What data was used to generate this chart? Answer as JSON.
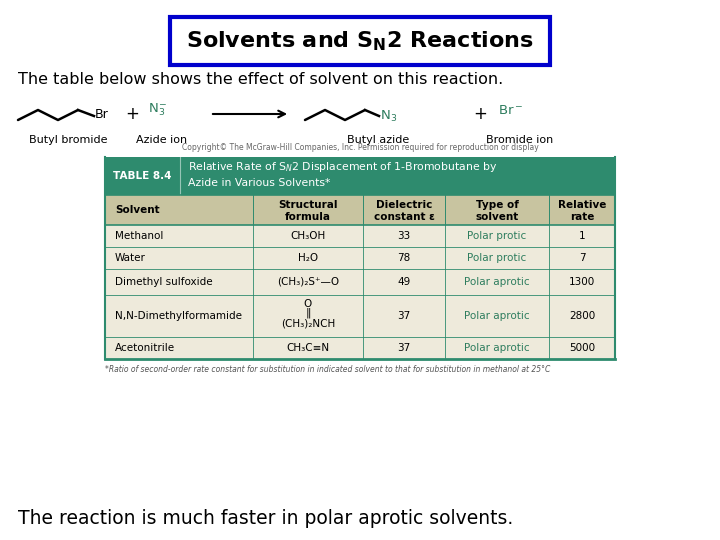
{
  "title_box_color": "#0000cc",
  "subtitle": "The table below shows the effect of solvent on this reaction.",
  "footer": "The reaction is much faster in polar aprotic solvents.",
  "copyright": "Copyright© The McGraw-Hill Companies, Inc. Permission required for reproduction or display",
  "table_header_bg": "#2e8b6e",
  "table_subheader_bg": "#c8c4a0",
  "table_row_bg": "#eeeadb",
  "table_border_color": "#2e8b6e",
  "col_headers": [
    "Solvent",
    "Structural\nformula",
    "Dielectric\nconstant ε",
    "Type of\nsolvent",
    "Relative\nrate"
  ],
  "footnote": "*Ratio of second-order rate constant for substitution in indicated solvent to that for substitution in methanol at 25°C",
  "bg_color": "#ffffff",
  "text_color": "#000000",
  "teal_color": "#2e7d5e",
  "black": "#000000",
  "gray_label": "#444444"
}
